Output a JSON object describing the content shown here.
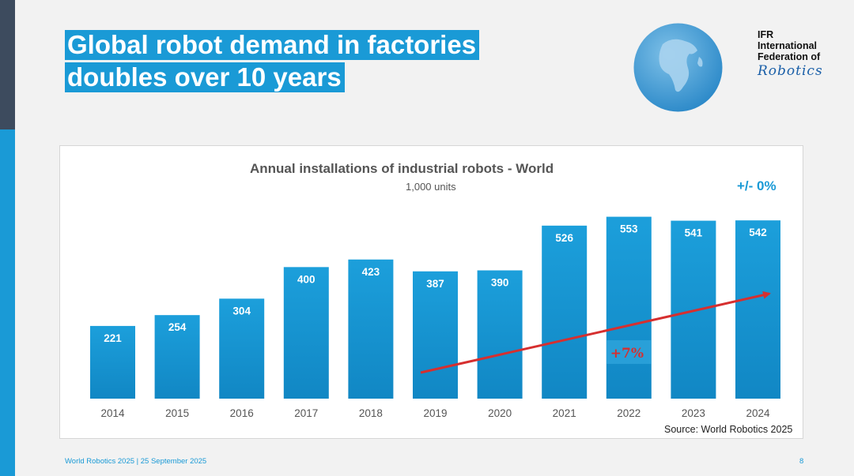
{
  "slide": {
    "title_line1": "Global robot demand in factories",
    "title_line2": "doubles over 10 years",
    "footer": "World Robotics 2025  | 25 September 2025",
    "page_number": "8",
    "accent_color": "#1a9ad6"
  },
  "logo": {
    "line1": "IFR",
    "line2": "International",
    "line3": "Federation of",
    "script": "Robotics"
  },
  "chart_data": {
    "type": "bar",
    "title": "Annual installations of industrial robots - World",
    "subtitle": "1,000 units",
    "categories": [
      "2014",
      "2015",
      "2016",
      "2017",
      "2018",
      "2019",
      "2020",
      "2021",
      "2022",
      "2023",
      "2024"
    ],
    "values": [
      221,
      254,
      304,
      400,
      423,
      387,
      390,
      526,
      553,
      541,
      542
    ],
    "value_labels": [
      "221",
      "254",
      "304",
      "400",
      "423",
      "387",
      "390",
      "526",
      "553",
      "541",
      "542"
    ],
    "ylim": [
      0,
      600
    ],
    "annotation_change": "+/- 0%",
    "trend_label": "+7%",
    "trend_color": "#d62f2f",
    "source": "Source: World Robotics 2025",
    "bar_color": "#1a9ad6",
    "grid": false
  }
}
